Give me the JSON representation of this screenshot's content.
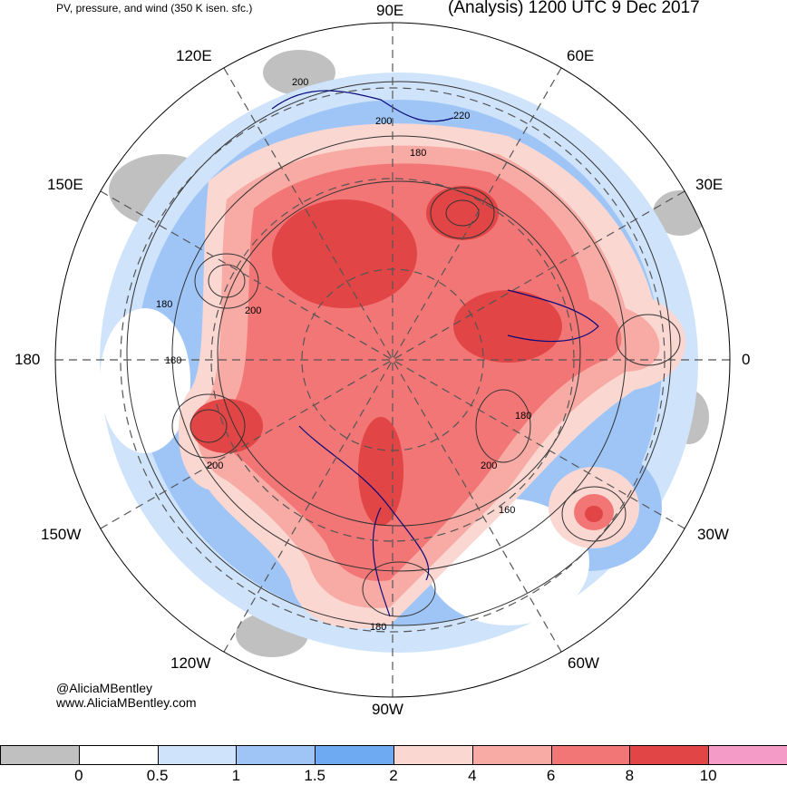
{
  "header": {
    "left_title": "PV, pressure, and wind (350 K isen. sfc.)",
    "right_title": "(Analysis) 1200 UTC 9 Dec 2017"
  },
  "longitude_labels": {
    "lon_90e": "90E",
    "lon_120e": "120E",
    "lon_60e": "60E",
    "lon_150e": "150E",
    "lon_30e": "30E",
    "lon_180": "180",
    "lon_0": "0",
    "lon_150w": "150W",
    "lon_30w": "30W",
    "lon_120w": "120W",
    "lon_60w": "60W",
    "lon_90w": "90W"
  },
  "contour_labels": {
    "c200_a": "200",
    "c200_b": "200",
    "c220": "220",
    "c180_a": "180",
    "c180_b": "180",
    "c180_c": "180",
    "c200_c": "200",
    "c180_d": "180",
    "c200_d": "200",
    "c200_e": "200",
    "c160": "160",
    "c180_e": "180"
  },
  "credits": {
    "handle": "@AliciaMBentley",
    "website": "www.AliciaMBentley.com"
  },
  "colorbar": {
    "colors": [
      "#c0c0c0",
      "#ffffff",
      "#cfe3fb",
      "#9fc5f7",
      "#6daaf2",
      "#fbd7d2",
      "#f8aaa5",
      "#f27676",
      "#e24545",
      "#f59bc7"
    ],
    "ticks": [
      "0",
      "0.5",
      "1",
      "1.5",
      "2",
      "4",
      "6",
      "8",
      "10"
    ]
  }
}
